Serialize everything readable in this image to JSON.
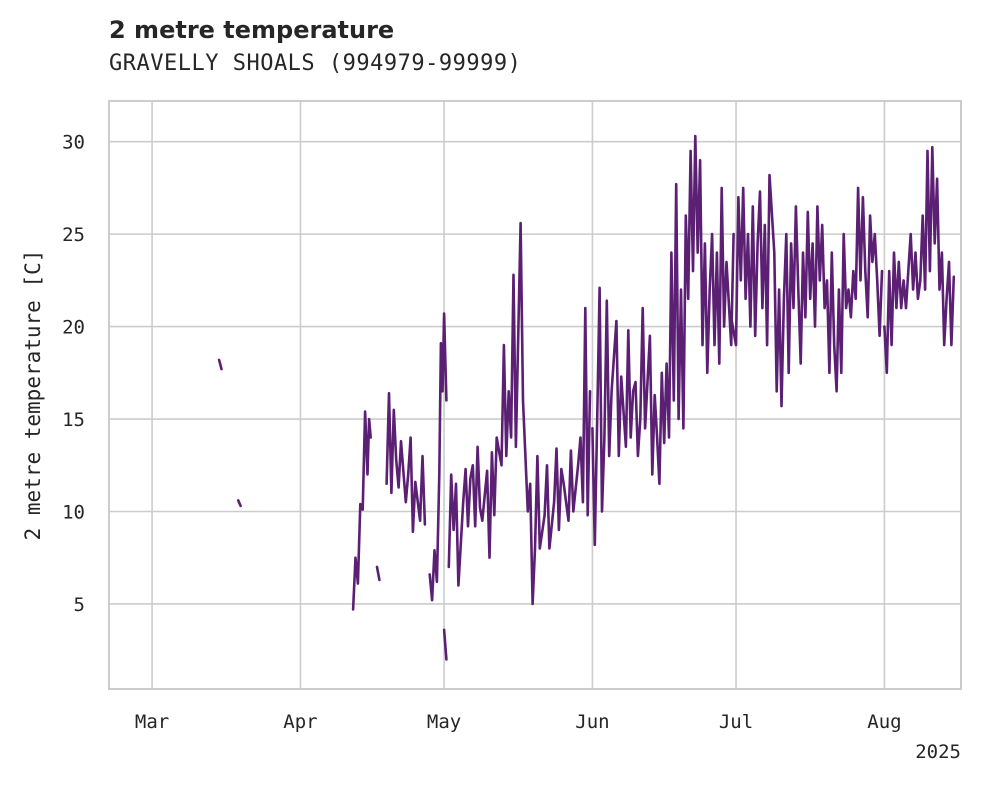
{
  "chart_data": {
    "type": "line",
    "title": "2 metre temperature",
    "subtitle": "GRAVELLY SHOALS (994979-99999)",
    "xlabel": "",
    "ylabel": "2 metre temperature [C]",
    "x_year_label": "2025",
    "xlim": [
      "2025-02-20",
      "2025-08-17"
    ],
    "ylim": [
      0.4,
      32.2
    ],
    "x_ticks": [
      {
        "date": "2025-03-01",
        "label": "Mar"
      },
      {
        "date": "2025-04-01",
        "label": "Apr"
      },
      {
        "date": "2025-05-01",
        "label": "May"
      },
      {
        "date": "2025-06-01",
        "label": "Jun"
      },
      {
        "date": "2025-07-01",
        "label": "Jul"
      },
      {
        "date": "2025-08-01",
        "label": "Aug"
      }
    ],
    "y_ticks": [
      5,
      10,
      15,
      20,
      25,
      30
    ],
    "grid": true,
    "line_color": "#5b1f73",
    "series": [
      {
        "segments": [
          {
            "x": [
              "2025-03-15",
              "2025-03-15"
            ],
            "y": [
              18.2,
              17.7
            ]
          },
          {
            "x": [
              "2025-03-19",
              "2025-03-19"
            ],
            "y": [
              10.6,
              10.3
            ]
          },
          {
            "x": [
              "2025-04-12",
              "2025-04-12",
              "2025-04-13",
              "2025-04-13",
              "2025-04-14",
              "2025-04-14",
              "2025-04-15",
              "2025-04-15",
              "2025-04-15"
            ],
            "y": [
              4.7,
              7.5,
              6.1,
              10.4,
              10.1,
              15.4,
              12.0,
              15.0,
              14.0
            ]
          },
          {
            "x": [
              "2025-04-17",
              "2025-04-17"
            ],
            "y": [
              7.0,
              6.3
            ]
          },
          {
            "x": [
              "2025-04-19",
              "2025-04-19",
              "2025-04-20",
              "2025-04-20",
              "2025-04-21",
              "2025-04-21",
              "2025-04-22",
              "2025-04-23",
              "2025-04-23",
              "2025-04-24",
              "2025-04-24",
              "2025-04-25",
              "2025-04-26",
              "2025-04-26",
              "2025-04-27"
            ],
            "y": [
              11.5,
              16.4,
              11.0,
              15.5,
              12.8,
              11.3,
              13.8,
              10.5,
              12.0,
              14.0,
              8.9,
              11.6,
              9.5,
              13.0,
              9.3
            ]
          },
          {
            "x": [
              "2025-04-28",
              "2025-04-28",
              "2025-04-29",
              "2025-04-29",
              "2025-04-30",
              "2025-04-30",
              "2025-04-30",
              "2025-05-01",
              "2025-05-01"
            ],
            "y": [
              6.6,
              5.2,
              7.9,
              6.2,
              12.0,
              19.1,
              16.5,
              20.7,
              16.0
            ]
          },
          {
            "x": [
              "2025-05-01",
              "2025-05-01"
            ],
            "y": [
              3.6,
              2.0
            ]
          },
          {
            "x": [
              "2025-05-02",
              "2025-05-02",
              "2025-05-03",
              "2025-05-03",
              "2025-05-04",
              "2025-05-05",
              "2025-05-05",
              "2025-05-06",
              "2025-05-06",
              "2025-05-07",
              "2025-05-07",
              "2025-05-08",
              "2025-05-08",
              "2025-05-09",
              "2025-05-10",
              "2025-05-10",
              "2025-05-11",
              "2025-05-11",
              "2025-05-12",
              "2025-05-13",
              "2025-05-13",
              "2025-05-14",
              "2025-05-14",
              "2025-05-15",
              "2025-05-15",
              "2025-05-16",
              "2025-05-17",
              "2025-05-17",
              "2025-05-18",
              "2025-05-18",
              "2025-05-19",
              "2025-05-19",
              "2025-05-20",
              "2025-05-20",
              "2025-05-21",
              "2025-05-22",
              "2025-05-22",
              "2025-05-23",
              "2025-05-24",
              "2025-05-24",
              "2025-05-25",
              "2025-05-25",
              "2025-05-26",
              "2025-05-27",
              "2025-05-27",
              "2025-05-28",
              "2025-05-29",
              "2025-05-29",
              "2025-05-30",
              "2025-05-30",
              "2025-05-31",
              "2025-05-31"
            ],
            "y": [
              7.0,
              12.0,
              9.0,
              11.5,
              6.0,
              10.5,
              12.3,
              9.2,
              11.8,
              12.5,
              9.2,
              13.5,
              10.2,
              9.5,
              12.2,
              7.5,
              13.2,
              9.8,
              14.0,
              12.5,
              19.0,
              13.0,
              16.5,
              14.0,
              22.8,
              13.5,
              25.6,
              16.0,
              13.0,
              10.0,
              11.5,
              5.0,
              8.0,
              13.0,
              8.0,
              9.8,
              12.5,
              8.0,
              10.5,
              13.4,
              9.0,
              12.3,
              11.5,
              9.5,
              13.3,
              10.0,
              12.5,
              14.0,
              10.5,
              21.0,
              9.8,
              16.5
            ]
          },
          {
            "x": [
              "2025-06-01",
              "2025-06-01",
              "2025-06-02",
              "2025-06-02",
              "2025-06-03",
              "2025-06-03",
              "2025-06-04",
              "2025-06-04",
              "2025-06-05",
              "2025-06-06",
              "2025-06-06",
              "2025-06-07",
              "2025-06-08",
              "2025-06-08",
              "2025-06-09",
              "2025-06-09",
              "2025-06-10",
              "2025-06-10",
              "2025-06-11",
              "2025-06-11",
              "2025-06-12",
              "2025-06-13",
              "2025-06-13",
              "2025-06-14",
              "2025-06-14",
              "2025-06-15",
              "2025-06-15",
              "2025-06-16",
              "2025-06-16",
              "2025-06-17",
              "2025-06-17",
              "2025-06-18",
              "2025-06-18",
              "2025-06-19",
              "2025-06-19",
              "2025-06-20",
              "2025-06-20",
              "2025-06-21",
              "2025-06-21",
              "2025-06-22",
              "2025-06-22",
              "2025-06-23",
              "2025-06-23",
              "2025-06-24",
              "2025-06-24",
              "2025-06-25",
              "2025-06-25",
              "2025-06-26",
              "2025-06-26",
              "2025-06-27",
              "2025-06-27",
              "2025-06-28",
              "2025-06-28",
              "2025-06-29",
              "2025-06-30",
              "2025-06-30"
            ],
            "y": [
              14.5,
              8.2,
              15.0,
              22.1,
              10.0,
              14.0,
              21.4,
              13.0,
              16.5,
              20.3,
              13.0,
              17.3,
              13.5,
              19.8,
              14.0,
              16.5,
              17.0,
              13.0,
              15.0,
              21.0,
              14.5,
              19.5,
              12.0,
              16.3,
              14.0,
              11.5,
              17.5,
              13.7,
              18.0,
              14.0,
              24.0,
              16.0,
              27.7,
              15.0,
              22.0,
              14.5,
              26.0,
              21.5,
              29.5,
              23.0,
              30.3,
              24.0,
              29.0,
              19.0,
              24.5,
              17.5,
              22.0,
              25.0,
              19.0,
              24.0,
              18.0,
              27.5,
              20.0,
              23.5,
              19.0,
              25.0
            ]
          },
          {
            "x": [
              "2025-06-30",
              "2025-07-01",
              "2025-07-01",
              "2025-07-02",
              "2025-07-02",
              "2025-07-03",
              "2025-07-03",
              "2025-07-04",
              "2025-07-04",
              "2025-07-05",
              "2025-07-05",
              "2025-07-06",
              "2025-07-06",
              "2025-07-07",
              "2025-07-07",
              "2025-07-08",
              "2025-07-09",
              "2025-07-09",
              "2025-07-10",
              "2025-07-10",
              "2025-07-11",
              "2025-07-11",
              "2025-07-12",
              "2025-07-12",
              "2025-07-13",
              "2025-07-13",
              "2025-07-14",
              "2025-07-14",
              "2025-07-15",
              "2025-07-15",
              "2025-07-16",
              "2025-07-16",
              "2025-07-17",
              "2025-07-17",
              "2025-07-18",
              "2025-07-18",
              "2025-07-19",
              "2025-07-19",
              "2025-07-20",
              "2025-07-20",
              "2025-07-21",
              "2025-07-21",
              "2025-07-22",
              "2025-07-22",
              "2025-07-23",
              "2025-07-23",
              "2025-07-24",
              "2025-07-24",
              "2025-07-25",
              "2025-07-25",
              "2025-07-26",
              "2025-07-26",
              "2025-07-27",
              "2025-07-27",
              "2025-07-28",
              "2025-07-28",
              "2025-07-29",
              "2025-07-29",
              "2025-07-30",
              "2025-07-30",
              "2025-07-31",
              "2025-07-31"
            ],
            "y": [
              20.5,
              19.0,
              27.0,
              22.5,
              27.5,
              21.5,
              25.0,
              20.0,
              26.5,
              19.5,
              24.5,
              27.3,
              21.0,
              25.5,
              19.0,
              28.2,
              24.0,
              16.5,
              22.0,
              15.7,
              21.5,
              25.0,
              17.5,
              24.5,
              21.0,
              26.5,
              22.0,
              18.0,
              24.0,
              20.5,
              26.2,
              21.5,
              24.5,
              20.0,
              26.5,
              22.5,
              25.5,
              21.0,
              22.5,
              17.5,
              24.0,
              19.0,
              16.5,
              22.0,
              17.5,
              25.0,
              21.0,
              22.0,
              20.5,
              23.0,
              21.5,
              27.5,
              22.5,
              27.0,
              23.0,
              20.5,
              26.0,
              23.5,
              25.0,
              22.5,
              19.5,
              23.0
            ]
          },
          {
            "x": [
              "2025-08-01",
              "2025-08-01",
              "2025-08-02",
              "2025-08-02",
              "2025-08-03",
              "2025-08-03",
              "2025-08-04",
              "2025-08-04",
              "2025-08-05",
              "2025-08-05",
              "2025-08-06",
              "2025-08-06",
              "2025-08-07",
              "2025-08-07",
              "2025-08-08",
              "2025-08-08",
              "2025-08-09",
              "2025-08-09",
              "2025-08-10",
              "2025-08-10",
              "2025-08-11",
              "2025-08-11",
              "2025-08-12",
              "2025-08-12",
              "2025-08-13",
              "2025-08-13",
              "2025-08-14",
              "2025-08-14",
              "2025-08-15",
              "2025-08-15"
            ],
            "y": [
              20.0,
              17.5,
              23.0,
              19.0,
              24.0,
              21.0,
              23.5,
              21.0,
              22.5,
              21.0,
              23.0,
              25.0,
              22.0,
              24.0,
              21.5,
              22.5,
              26.0,
              22.0,
              29.5,
              23.0,
              29.7,
              24.5,
              28.0,
              22.0,
              24.0,
              19.0,
              21.5,
              23.5,
              19.0,
              22.7
            ]
          }
        ]
      }
    ]
  }
}
